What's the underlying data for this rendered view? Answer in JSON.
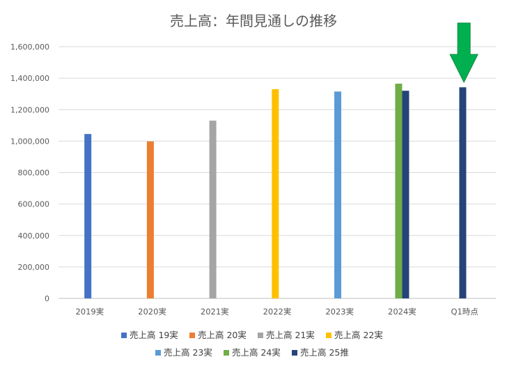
{
  "chart_data": {
    "type": "bar",
    "title": "売上高：年間見通しの推移",
    "xlabel": "",
    "ylabel": "",
    "ylim": [
      0,
      1600000
    ],
    "y_ticks": [
      "0",
      "200,000",
      "400,000",
      "600,000",
      "800,000",
      "1,000,000",
      "1,200,000",
      "1,400,000",
      "1,600,000"
    ],
    "y_tick_values": [
      0,
      200000,
      400000,
      600000,
      800000,
      1000000,
      1200000,
      1400000,
      1600000
    ],
    "grid": true,
    "legend_position": "bottom",
    "categories": [
      "2019実",
      "2020実",
      "2021実",
      "2022実",
      "2023実",
      "2024実",
      "Q1時点"
    ],
    "series": [
      {
        "name": "売上高 19実",
        "color": "#4472C4",
        "values": [
          1045000,
          null,
          null,
          null,
          null,
          null,
          null
        ]
      },
      {
        "name": "売上高 20実",
        "color": "#ED7D31",
        "values": [
          null,
          998000,
          null,
          null,
          null,
          null,
          null
        ]
      },
      {
        "name": "売上高 21実",
        "color": "#A5A5A5",
        "values": [
          null,
          null,
          1130000,
          null,
          null,
          null,
          null
        ]
      },
      {
        "name": "売上高 22実",
        "color": "#FFC000",
        "values": [
          null,
          null,
          null,
          1330000,
          null,
          null,
          null
        ]
      },
      {
        "name": "売上高 23実",
        "color": "#5B9BD5",
        "values": [
          null,
          null,
          null,
          null,
          1315000,
          null,
          null
        ]
      },
      {
        "name": "売上高 24実",
        "color": "#70AD47",
        "values": [
          null,
          null,
          null,
          null,
          null,
          1365000,
          null
        ]
      },
      {
        "name": "売上高 25推",
        "color": "#264478",
        "values": [
          null,
          null,
          null,
          null,
          null,
          1320000,
          1342000
        ]
      }
    ],
    "annotation": {
      "type": "arrow-down",
      "target_category": "Q1時点",
      "color": "#00B050",
      "icon": "down-arrow-icon"
    }
  }
}
